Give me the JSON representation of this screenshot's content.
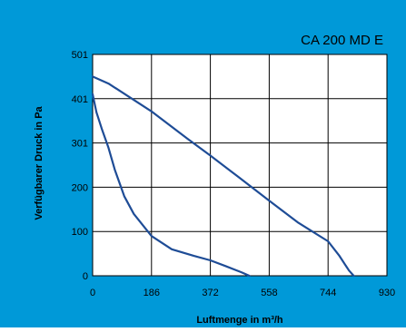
{
  "colors": {
    "panel_bg": "#0099D8",
    "plot_bg": "#FFFFFF",
    "grid": "#000000",
    "curve": "#1E4C96",
    "text": "#000000"
  },
  "chart_data": {
    "type": "line",
    "title": "CA 200 MD E",
    "xlabel": "Luftmenge in m³/h",
    "ylabel": "Verfügbarer Druck in Pa",
    "xlim": [
      0,
      930
    ],
    "ylim": [
      0,
      501
    ],
    "x_ticks": [
      "0",
      "186",
      "372",
      "558",
      "744",
      "930"
    ],
    "y_ticks": [
      "0",
      "100",
      "200",
      "301",
      "401",
      "501"
    ],
    "grid": true,
    "series": [
      {
        "color": "#1E4C96",
        "points": [
          [
            0,
            451
          ],
          [
            50,
            435
          ],
          [
            100,
            412
          ],
          [
            186,
            372
          ],
          [
            300,
            310
          ],
          [
            372,
            272
          ],
          [
            458,
            225
          ],
          [
            558,
            170
          ],
          [
            650,
            120
          ],
          [
            744,
            78
          ],
          [
            780,
            45
          ],
          [
            810,
            12
          ],
          [
            825,
            0
          ]
        ]
      },
      {
        "color": "#1E4C96",
        "points": [
          [
            0,
            411
          ],
          [
            12,
            370
          ],
          [
            30,
            330
          ],
          [
            50,
            290
          ],
          [
            70,
            240
          ],
          [
            100,
            180
          ],
          [
            130,
            140
          ],
          [
            186,
            90
          ],
          [
            250,
            60
          ],
          [
            320,
            45
          ],
          [
            372,
            35
          ],
          [
            420,
            22
          ],
          [
            470,
            8
          ],
          [
            495,
            0
          ]
        ]
      }
    ]
  }
}
